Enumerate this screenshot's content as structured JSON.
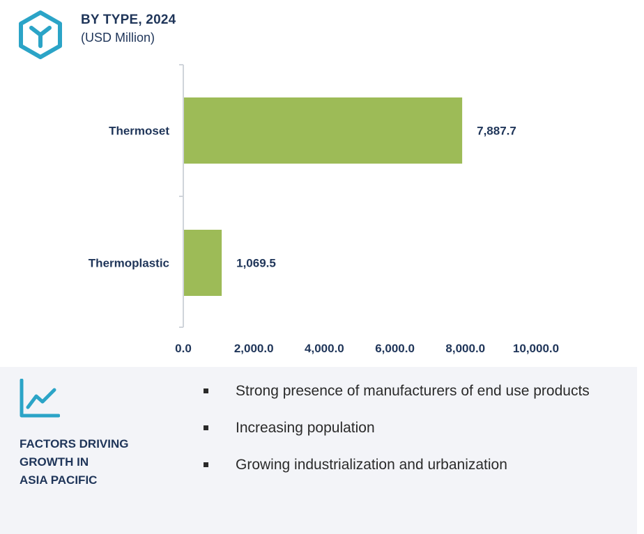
{
  "header": {
    "title": "BY TYPE, 2024",
    "subtitle": "(USD Million)",
    "icon": "cube-icon"
  },
  "colors": {
    "bar": "#9dbb57",
    "text": "#1f3559",
    "icon": "#2ba4c7",
    "axis": "#cfd4da",
    "panel_bg": "#f3f4f8"
  },
  "chart_data": {
    "type": "bar",
    "orientation": "horizontal",
    "categories": [
      "Thermoset",
      "Thermoplastic"
    ],
    "values": [
      7887.7,
      1069.5
    ],
    "value_labels": [
      "7,887.7",
      "1,069.5"
    ],
    "xlim": [
      0,
      10000
    ],
    "xticks": [
      "0.0",
      "2,000.0",
      "4,000.0",
      "6,000.0",
      "8,000.0",
      "10,000.0"
    ],
    "grid": false
  },
  "factors": {
    "icon": "trend-line-icon",
    "heading": [
      "FACTORS DRIVING",
      "GROWTH IN",
      "ASIA PACIFIC"
    ],
    "items": [
      "Strong presence of manufacturers of end use products",
      "Increasing population",
      "Growing industrialization and urbanization"
    ]
  }
}
